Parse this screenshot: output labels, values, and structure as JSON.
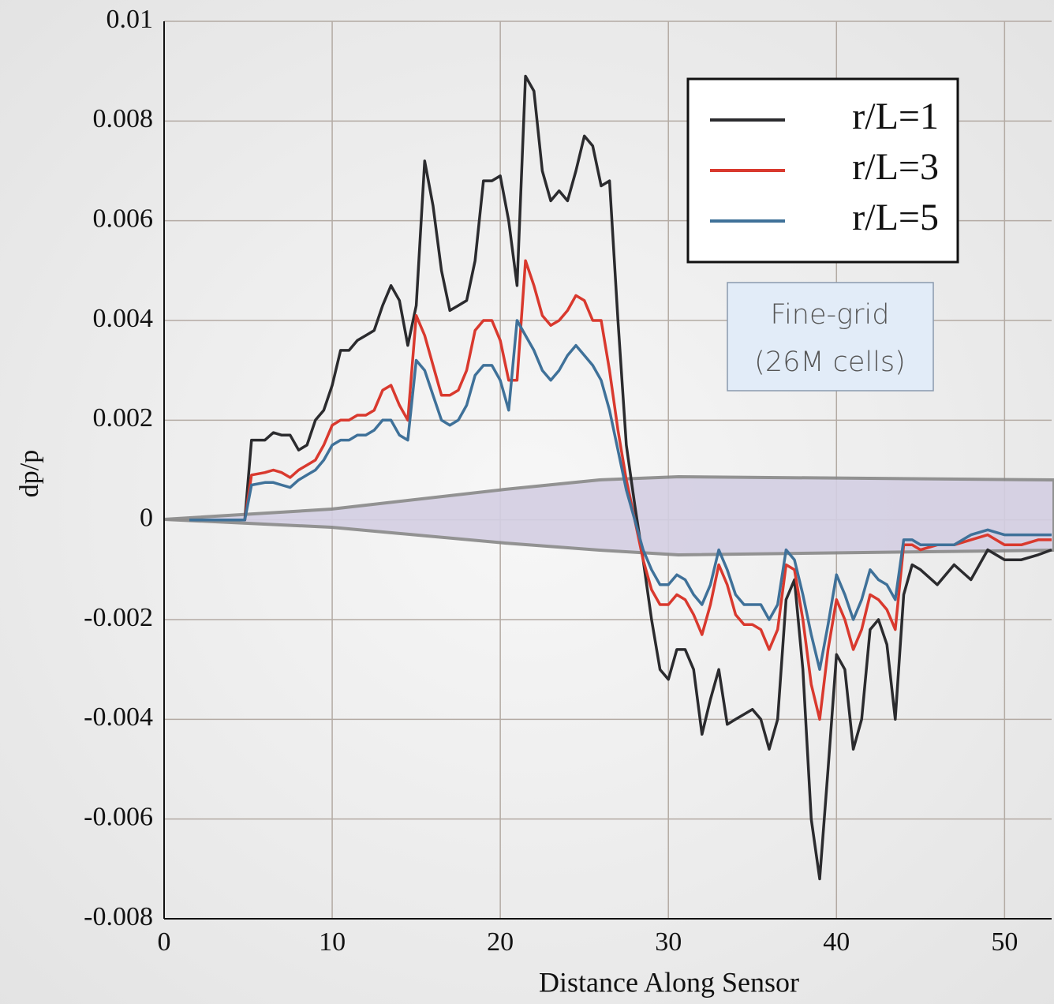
{
  "chart_data": {
    "type": "line",
    "xlabel": "Distance Along Sensor",
    "ylabel": "dp/p",
    "annotation": [
      "Fine-grid",
      "(26M cells)"
    ],
    "x": [
      1.5,
      4.8,
      5.2,
      6,
      6.5,
      7,
      7.5,
      8,
      8.5,
      9,
      9.5,
      10,
      10.5,
      11,
      11.5,
      12,
      12.5,
      13,
      13.5,
      14,
      14.5,
      15,
      15.5,
      16,
      16.5,
      17,
      17.5,
      18,
      18.5,
      19,
      19.5,
      20,
      20.5,
      21,
      21.5,
      22,
      22.5,
      23,
      23.5,
      24,
      24.5,
      25,
      25.5,
      26,
      26.5,
      27,
      27.5,
      28,
      28.5,
      29,
      29.5,
      30,
      30.5,
      31,
      31.5,
      32,
      32.5,
      33,
      33.5,
      34,
      34.5,
      35,
      35.5,
      36,
      36.5,
      37,
      37.5,
      38,
      38.5,
      39,
      39.5,
      40,
      40.5,
      41,
      41.5,
      42,
      42.5,
      43,
      43.5,
      44,
      44.5,
      45,
      46,
      47,
      48,
      49,
      50,
      51,
      52,
      52.8
    ],
    "series": [
      {
        "name": "r/L=1",
        "color": "#2b2b2e",
        "values": [
          0,
          0,
          0.0016,
          0.0016,
          0.00175,
          0.0017,
          0.0017,
          0.0014,
          0.0015,
          0.002,
          0.0022,
          0.0027,
          0.0034,
          0.0034,
          0.0036,
          0.0037,
          0.0038,
          0.0043,
          0.0047,
          0.0044,
          0.0035,
          0.0043,
          0.0072,
          0.0063,
          0.005,
          0.0042,
          0.0043,
          0.0044,
          0.0052,
          0.0068,
          0.0068,
          0.0069,
          0.006,
          0.0047,
          0.0089,
          0.0086,
          0.007,
          0.0064,
          0.0066,
          0.0064,
          0.007,
          0.0077,
          0.0075,
          0.0067,
          0.0068,
          0.004,
          0.0015,
          0.0003,
          -0.0008,
          -0.002,
          -0.003,
          -0.0032,
          -0.0026,
          -0.0026,
          -0.003,
          -0.0043,
          -0.0036,
          -0.003,
          -0.0041,
          -0.004,
          -0.0039,
          -0.0038,
          -0.004,
          -0.0046,
          -0.004,
          -0.0016,
          -0.0012,
          -0.003,
          -0.006,
          -0.0072,
          -0.005,
          -0.0027,
          -0.003,
          -0.0046,
          -0.004,
          -0.0022,
          -0.002,
          -0.0025,
          -0.004,
          -0.0015,
          -0.0009,
          -0.001,
          -0.0013,
          -0.0009,
          -0.0012,
          -0.0006,
          -0.0008,
          -0.0008,
          -0.0007,
          -0.0006
        ]
      },
      {
        "name": "r/L=3",
        "color": "#d9392e",
        "values": [
          0,
          0,
          0.0009,
          0.00095,
          0.001,
          0.00095,
          0.00085,
          0.001,
          0.0011,
          0.0012,
          0.0015,
          0.0019,
          0.002,
          0.002,
          0.0021,
          0.0021,
          0.0022,
          0.0026,
          0.0027,
          0.0023,
          0.002,
          0.0041,
          0.0037,
          0.0031,
          0.0025,
          0.0025,
          0.0026,
          0.003,
          0.0038,
          0.004,
          0.004,
          0.0036,
          0.0028,
          0.0028,
          0.0052,
          0.0047,
          0.0041,
          0.0039,
          0.004,
          0.0042,
          0.0045,
          0.0044,
          0.004,
          0.004,
          0.003,
          0.0018,
          0.0008,
          0,
          -0.0008,
          -0.0014,
          -0.0017,
          -0.0017,
          -0.0015,
          -0.0016,
          -0.0019,
          -0.0023,
          -0.0017,
          -0.0009,
          -0.0013,
          -0.0019,
          -0.0021,
          -0.0021,
          -0.0022,
          -0.0026,
          -0.0022,
          -0.0009,
          -0.001,
          -0.002,
          -0.0033,
          -0.004,
          -0.0026,
          -0.0016,
          -0.002,
          -0.0026,
          -0.0022,
          -0.0015,
          -0.0016,
          -0.0018,
          -0.0022,
          -0.0005,
          -0.0005,
          -0.0006,
          -0.0005,
          -0.0005,
          -0.0004,
          -0.0003,
          -0.0005,
          -0.0005,
          -0.0004,
          -0.0004
        ]
      },
      {
        "name": "r/L=5",
        "color": "#3f7199",
        "values": [
          0,
          0,
          0.0007,
          0.00075,
          0.00075,
          0.0007,
          0.00065,
          0.0008,
          0.0009,
          0.001,
          0.0012,
          0.0015,
          0.0016,
          0.0016,
          0.0017,
          0.0017,
          0.0018,
          0.002,
          0.002,
          0.0017,
          0.0016,
          0.0032,
          0.003,
          0.0025,
          0.002,
          0.0019,
          0.002,
          0.0023,
          0.0029,
          0.0031,
          0.0031,
          0.0028,
          0.0022,
          0.004,
          0.0037,
          0.0034,
          0.003,
          0.0028,
          0.003,
          0.0033,
          0.0035,
          0.0033,
          0.0031,
          0.0028,
          0.0022,
          0.0014,
          0.0006,
          0,
          -0.0006,
          -0.001,
          -0.0013,
          -0.0013,
          -0.0011,
          -0.0012,
          -0.0015,
          -0.0017,
          -0.0013,
          -0.0006,
          -0.001,
          -0.0015,
          -0.0017,
          -0.0017,
          -0.0017,
          -0.002,
          -0.0017,
          -0.0006,
          -0.0008,
          -0.0015,
          -0.0023,
          -0.003,
          -0.0021,
          -0.0011,
          -0.0015,
          -0.002,
          -0.0016,
          -0.001,
          -0.0012,
          -0.0013,
          -0.0016,
          -0.0004,
          -0.0004,
          -0.0005,
          -0.0005,
          -0.0005,
          -0.0003,
          -0.0002,
          -0.0003,
          -0.0003,
          -0.0003,
          -0.0003
        ]
      }
    ],
    "xlim": [
      0,
      52.8
    ],
    "ylim": [
      -0.008,
      0.01
    ],
    "xticks": [
      0,
      10,
      20,
      30,
      40,
      50
    ],
    "yticks": [
      0.01,
      0.008,
      0.006,
      0.004,
      0.002,
      0,
      -0.002,
      -0.004,
      -0.006,
      -0.008
    ],
    "grid": true,
    "legend": "upper right"
  }
}
